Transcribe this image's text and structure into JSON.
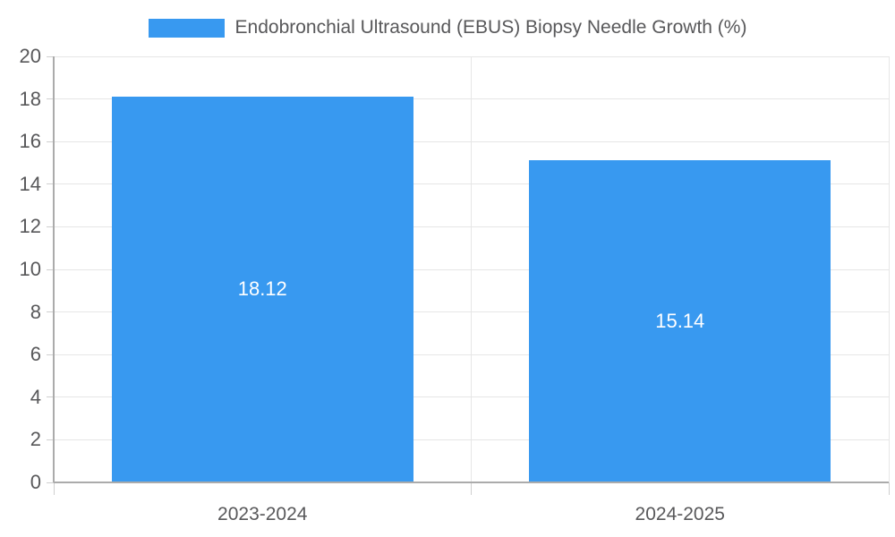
{
  "chart_data": {
    "type": "bar",
    "title": "Endobronchial Ultrasound (EBUS) Biopsy Needle Growth (%)",
    "categories": [
      "2023-2024",
      "2024-2025"
    ],
    "values": [
      18.12,
      15.14
    ],
    "value_labels": [
      "18.12",
      "15.14"
    ],
    "ylim": [
      0,
      20
    ],
    "ytick_step": 2,
    "ytick_labels": [
      "0",
      "2",
      "4",
      "6",
      "8",
      "10",
      "12",
      "14",
      "16",
      "18",
      "20"
    ],
    "grid": true,
    "legend_position": "top-center",
    "xlabel": "",
    "ylabel": "",
    "colors": {
      "bar": "#3899f0",
      "value_label": "#ffffff",
      "grid_line": "#e6e6e6",
      "separator_line": "#e6e6e6",
      "axis_line": "#ababab",
      "tick_mark": "#cfcfcf",
      "tick_text": "#58585a",
      "legend_text": "#58585a",
      "background": "#ffffff"
    }
  }
}
